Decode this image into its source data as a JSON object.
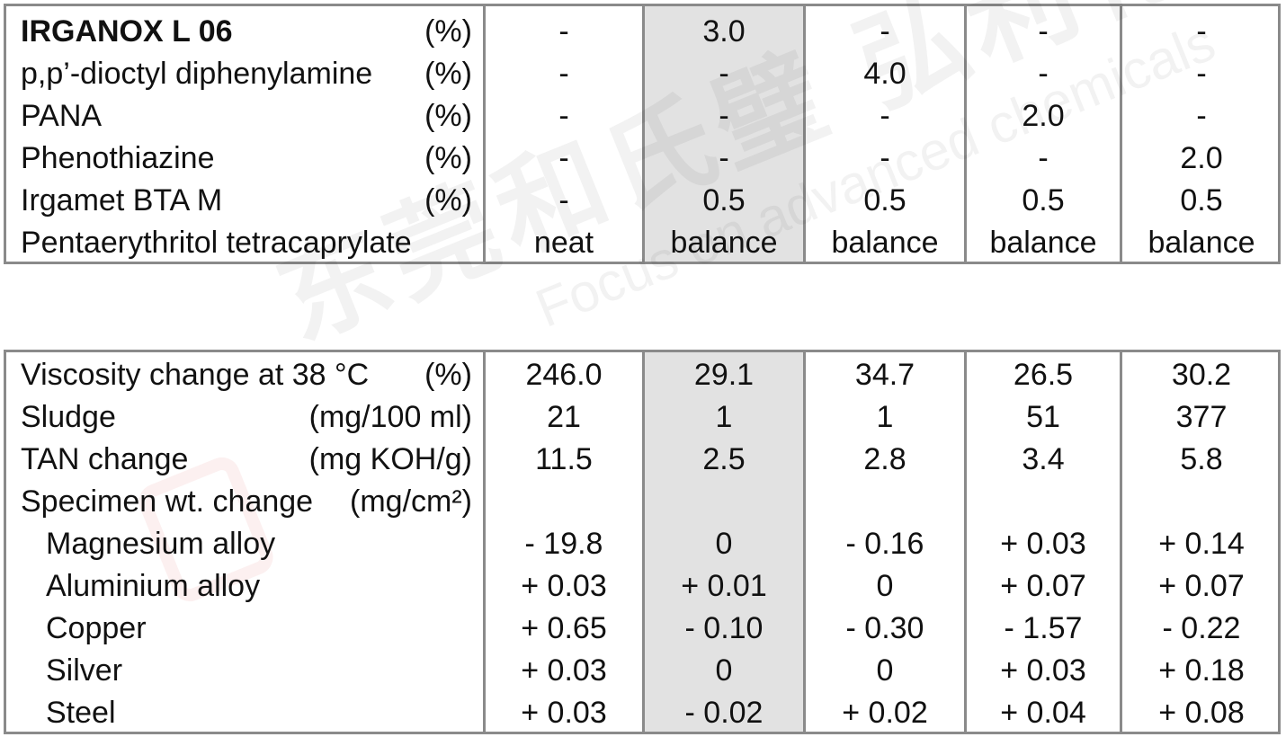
{
  "watermark": {
    "cn": "东莞和氏璧 弘利化工",
    "en": "Focus on advanced chemicals"
  },
  "table1": {
    "rows": [
      {
        "label": "IRGANOX L 06",
        "unit": "(%)",
        "values": [
          "-",
          "3.0",
          "-",
          "-",
          "-"
        ],
        "bold": true
      },
      {
        "label": "p,p’-dioctyl diphenylamine",
        "unit": "(%)",
        "values": [
          "-",
          "-",
          "4.0",
          "-",
          "-"
        ]
      },
      {
        "label": "PANA",
        "unit": "(%)",
        "values": [
          "-",
          "-",
          "-",
          "2.0",
          "-"
        ]
      },
      {
        "label": "Phenothiazine",
        "unit": "(%)",
        "values": [
          "-",
          "-",
          "-",
          "-",
          "2.0"
        ]
      },
      {
        "label": "Irgamet BTA M",
        "unit": "(%)",
        "values": [
          "-",
          "0.5",
          "0.5",
          "0.5",
          "0.5"
        ]
      },
      {
        "label": "Pentaerythritol tetracaprylate",
        "unit": "",
        "values": [
          "neat",
          "balance",
          "balance",
          "balance",
          "balance"
        ]
      }
    ]
  },
  "table2": {
    "rows": [
      {
        "label": "Viscosity change at 38 °C",
        "unit": "(%)",
        "values": [
          "246.0",
          "29.1",
          "34.7",
          "26.5",
          "30.2"
        ]
      },
      {
        "label": "Sludge",
        "unit": "(mg/100 ml)",
        "values": [
          "21",
          "1",
          "1",
          "51",
          "377"
        ]
      },
      {
        "label": "TAN change",
        "unit": "(mg KOH/g)",
        "values": [
          "11.5",
          "2.5",
          "2.8",
          "3.4",
          "5.8"
        ]
      },
      {
        "label": "Specimen wt. change",
        "unit": "(mg/cm²)",
        "values": [
          "",
          "",
          "",
          "",
          ""
        ]
      },
      {
        "label": "Magnesium alloy",
        "unit": "",
        "values": [
          "- 19.8",
          "0",
          "- 0.16",
          "+ 0.03",
          "+ 0.14"
        ],
        "indent": true
      },
      {
        "label": "Aluminium alloy",
        "unit": "",
        "values": [
          "+ 0.03",
          "+ 0.01",
          "0",
          "+ 0.07",
          "+ 0.07"
        ],
        "indent": true
      },
      {
        "label": "Copper",
        "unit": "",
        "values": [
          "+ 0.65",
          "- 0.10",
          "- 0.30",
          "- 1.57",
          "- 0.22"
        ],
        "indent": true
      },
      {
        "label": "Silver",
        "unit": "",
        "values": [
          "+ 0.03",
          "0",
          "0",
          "+ 0.03",
          "+ 0.18"
        ],
        "indent": true
      },
      {
        "label": "Steel",
        "unit": "",
        "values": [
          "+ 0.03",
          "- 0.02",
          "+ 0.02",
          "+ 0.04",
          "+ 0.08"
        ],
        "indent": true
      }
    ]
  }
}
